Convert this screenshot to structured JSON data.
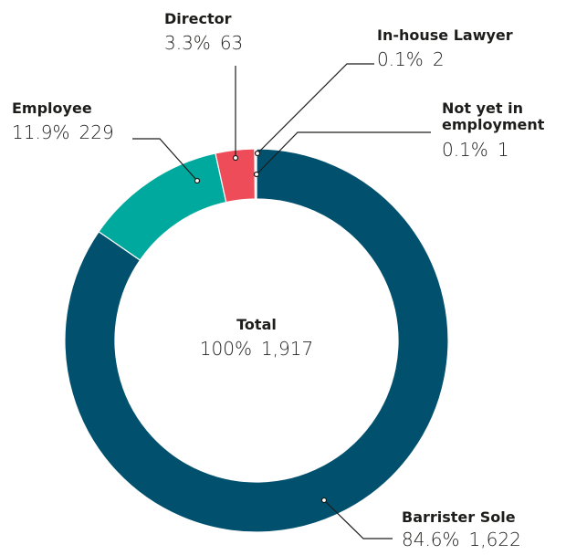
{
  "chart_data": {
    "type": "donut",
    "categories": [
      "Barrister Sole",
      "Employee",
      "Director",
      "In-house Lawyer",
      "Not yet in employment"
    ],
    "values": [
      1622,
      229,
      63,
      2,
      1
    ],
    "value_labels": [
      "1,622",
      "229",
      "63",
      "2",
      "1"
    ],
    "percentages": [
      84.6,
      11.9,
      3.3,
      0.1,
      0.1
    ],
    "percentage_labels": [
      "84.6%",
      "11.9%",
      "3.3%",
      "0.1%",
      "0.1%"
    ],
    "colors": [
      "#00506e",
      "#00a99d",
      "#ef4c5a",
      "#f7a541",
      "#7a3b8f"
    ],
    "total": {
      "label": "Total",
      "percentage_label": "100%",
      "value_label": "1,917"
    }
  }
}
